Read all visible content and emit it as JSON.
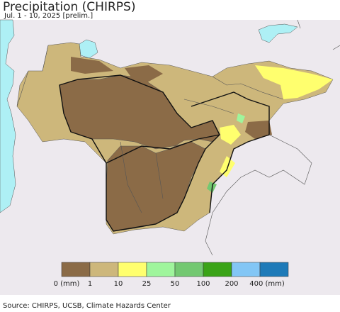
{
  "title": "Precipitation (CHIRPS)",
  "subtitle": "Jul. 1 - 10, 2025 [prelim.]",
  "legend": {
    "colors": [
      "#8b6b47",
      "#cdb77b",
      "#ffff6e",
      "#9ff59c",
      "#73c871",
      "#3aa317",
      "#83c6f5",
      "#1e7ab8"
    ],
    "labels": [
      "0 (mm)",
      "1",
      "10",
      "25",
      "50",
      "100",
      "200",
      "400 (mm)"
    ]
  },
  "source": "Source: CHIRPS, UCSB, Climate Hazards Center"
}
